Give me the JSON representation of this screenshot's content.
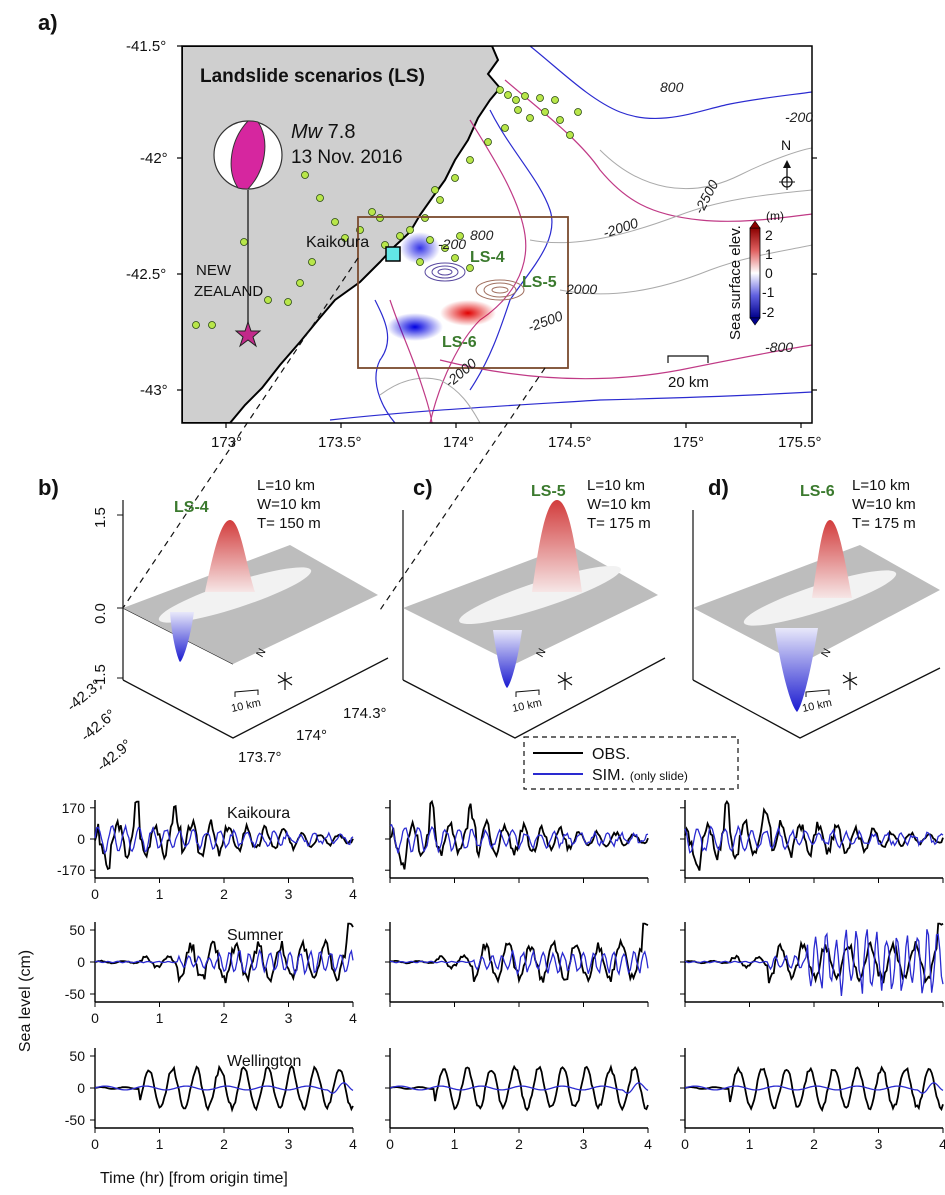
{
  "panel_a": {
    "letter": "a)",
    "title": "Landslide scenarios (LS)",
    "quake": {
      "mag_prefix": "Mw",
      "mag_value": " 7.8",
      "date": "13 Nov. 2016"
    },
    "labels": {
      "kaikoura": "Kaikoura",
      "new": "NEW",
      "zealand": "ZEALAND",
      "north": "N",
      "scale": "20 km"
    },
    "lat_ticks": [
      "-41.5°",
      "-42°",
      "-42.5°",
      "-43°"
    ],
    "lon_ticks": [
      "173°",
      "173.5°",
      "174°",
      "174.5°",
      "175°",
      "175.5°"
    ],
    "contours": [
      "800",
      "-200",
      "-2500",
      "-2000",
      "-200",
      "800",
      "2000",
      "-2500",
      "-2000",
      "-800"
    ],
    "scenarios": [
      "LS-4",
      "LS-5",
      "LS-6"
    ],
    "colorbar": {
      "title": "Sea surface elev.",
      "unit": "(m)",
      "ticks": [
        "2",
        "1",
        "0",
        "-1",
        "-2"
      ]
    }
  },
  "panels_3d": [
    {
      "letter": "b)",
      "name": "LS-4",
      "params": [
        "L=10 km",
        "W=10 km",
        "T= 150 m"
      ],
      "z_ticks": [
        "1.5",
        "0.0",
        "-1.5"
      ],
      "lat_ticks": [
        "-42.3°",
        "-42.6°",
        "-42.9°"
      ],
      "lon_ticks": [
        "173.7°",
        "174°",
        "174.3°"
      ],
      "scale": "10 km",
      "north": "N"
    },
    {
      "letter": "c)",
      "name": "LS-5",
      "params": [
        "L=10 km",
        "W=10 km",
        "T= 175 m"
      ],
      "scale": "10 km",
      "north": "N"
    },
    {
      "letter": "d)",
      "name": "LS-6",
      "params": [
        "L=10 km",
        "W=10 km",
        "T= 175 m"
      ],
      "scale": "10 km",
      "north": "N"
    }
  ],
  "legend": {
    "obs": "OBS.",
    "sim": "SIM.",
    "sim_note": "(only slide)"
  },
  "timeseries": {
    "ylabel": "Sea level (cm)",
    "xlabel": "Time (hr) [from origin time]",
    "x_ticks": [
      "0",
      "1",
      "2",
      "3",
      "4"
    ],
    "stations": [
      {
        "name": "Kaikoura",
        "y_ticks": [
          "170",
          "0",
          "-170"
        ]
      },
      {
        "name": "Sumner",
        "y_ticks": [
          "50",
          "0",
          "-50"
        ]
      },
      {
        "name": "Wellington",
        "y_ticks": [
          "50",
          "0",
          "-50"
        ]
      }
    ],
    "colors": {
      "obs": "#000000",
      "sim": "#2a2ad0"
    }
  },
  "colors": {
    "land": "#cfcfcf",
    "ls_label": "#3b7a2e",
    "beachball": "#d6269f",
    "epicenter": "#c2298a",
    "box": "#7a4a2e"
  }
}
